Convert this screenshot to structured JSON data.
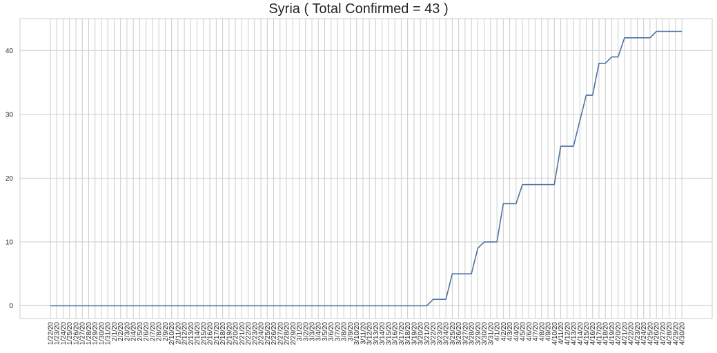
{
  "chart_data": {
    "type": "line",
    "title": "Syria ( Total Confirmed = 43 )",
    "xlabel": "",
    "ylabel": "",
    "ylim": [
      -2,
      45
    ],
    "yticks": [
      0,
      10,
      20,
      30,
      40
    ],
    "grid": true,
    "legend": "none",
    "colors": {
      "line": "#4c72a0",
      "grid": "#cccccc",
      "spine": "#cccccc",
      "text": "#262626"
    },
    "x": [
      "1/22/20",
      "1/23/20",
      "1/24/20",
      "1/25/20",
      "1/26/20",
      "1/27/20",
      "1/28/20",
      "1/29/20",
      "1/30/20",
      "1/31/20",
      "2/1/20",
      "2/2/20",
      "2/3/20",
      "2/4/20",
      "2/5/20",
      "2/6/20",
      "2/7/20",
      "2/8/20",
      "2/9/20",
      "2/10/20",
      "2/11/20",
      "2/12/20",
      "2/13/20",
      "2/14/20",
      "2/15/20",
      "2/16/20",
      "2/17/20",
      "2/18/20",
      "2/19/20",
      "2/20/20",
      "2/21/20",
      "2/22/20",
      "2/23/20",
      "2/24/20",
      "2/25/20",
      "2/26/20",
      "2/27/20",
      "2/28/20",
      "2/29/20",
      "3/1/20",
      "3/2/20",
      "3/3/20",
      "3/4/20",
      "3/5/20",
      "3/6/20",
      "3/7/20",
      "3/8/20",
      "3/9/20",
      "3/10/20",
      "3/11/20",
      "3/12/20",
      "3/13/20",
      "3/14/20",
      "3/15/20",
      "3/16/20",
      "3/17/20",
      "3/18/20",
      "3/19/20",
      "3/20/20",
      "3/21/20",
      "3/22/20",
      "3/23/20",
      "3/24/20",
      "3/25/20",
      "3/26/20",
      "3/27/20",
      "3/28/20",
      "3/29/20",
      "3/30/20",
      "3/31/20",
      "4/1/20",
      "4/2/20",
      "4/3/20",
      "4/4/20",
      "4/5/20",
      "4/6/20",
      "4/7/20",
      "4/8/20",
      "4/9/20",
      "4/10/20",
      "4/11/20",
      "4/12/20",
      "4/13/20",
      "4/14/20",
      "4/15/20",
      "4/16/20",
      "4/17/20",
      "4/18/20",
      "4/19/20",
      "4/20/20",
      "4/21/20",
      "4/22/20",
      "4/23/20",
      "4/24/20",
      "4/25/20",
      "4/26/20",
      "4/27/20",
      "4/28/20",
      "4/29/20",
      "4/30/20"
    ],
    "series": [
      {
        "values": [
          0,
          0,
          0,
          0,
          0,
          0,
          0,
          0,
          0,
          0,
          0,
          0,
          0,
          0,
          0,
          0,
          0,
          0,
          0,
          0,
          0,
          0,
          0,
          0,
          0,
          0,
          0,
          0,
          0,
          0,
          0,
          0,
          0,
          0,
          0,
          0,
          0,
          0,
          0,
          0,
          0,
          0,
          0,
          0,
          0,
          0,
          0,
          0,
          0,
          0,
          0,
          0,
          0,
          0,
          0,
          0,
          0,
          0,
          0,
          0,
          1,
          1,
          1,
          5,
          5,
          5,
          5,
          9,
          10,
          10,
          10,
          16,
          16,
          16,
          19,
          19,
          19,
          19,
          19,
          19,
          25,
          25,
          25,
          29,
          33,
          33,
          38,
          38,
          39,
          39,
          42,
          42,
          42,
          42,
          42,
          43,
          43,
          43,
          43,
          43
        ]
      }
    ]
  }
}
